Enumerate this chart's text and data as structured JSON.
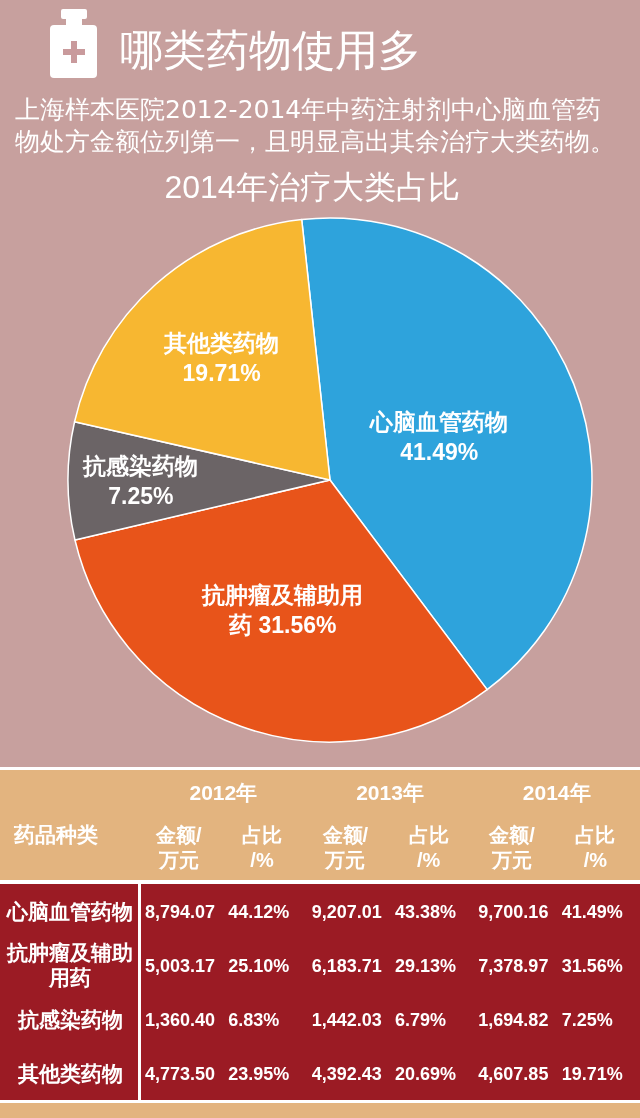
{
  "chart_data": [
    {
      "type": "pie",
      "title": "2014年治疗大类占比",
      "annotations": [
        "哪类药物使用多",
        "上海样本医院2012-2014年中药注射剂中心脑血管药物处方金额位列第一，且明显高出其余治疗大类药物。"
      ],
      "categories": [
        "心脑血管药物",
        "抗肿瘤及辅助用药",
        "抗感染药物",
        "其他类药物"
      ],
      "values": [
        41.49,
        31.56,
        7.25,
        19.71
      ],
      "value_labels": [
        "41.49%",
        "31.56%",
        "7.25%",
        "19.71%"
      ],
      "colors": [
        "#2ea3dc",
        "#e8541a",
        "#6b6466",
        "#f7b731"
      ]
    },
    {
      "type": "heatmap",
      "ylabel": "药品种类",
      "annotations": [
        "2012年",
        "2013年",
        "2014年"
      ],
      "categories": [
        "金额/万元",
        "占比/%",
        "金额/万元",
        "占比/%",
        "金额/万元",
        "占比/%"
      ],
      "y_categories": [
        "心脑血管药物",
        "抗肿瘤及辅助用药",
        "抗感染药物",
        "其他类药物"
      ],
      "cells": [
        [
          8794.07,
          44.12,
          9207.01,
          43.38,
          9700.16,
          41.49
        ],
        [
          5003.17,
          25.1,
          6183.71,
          29.13,
          7378.97,
          31.56
        ],
        [
          1360.4,
          6.83,
          1442.03,
          6.79,
          1694.82,
          7.25
        ],
        [
          4773.5,
          23.95,
          4392.43,
          20.69,
          4607.85,
          19.71
        ]
      ],
      "cell_labels": [
        [
          "8,794.07",
          "44.12%",
          "9,207.01",
          "43.38%",
          "9,700.16",
          "41.49%"
        ],
        [
          "5,003.17",
          "25.10%",
          "6,183.71",
          "29.13%",
          "7,378.97",
          "31.56%"
        ],
        [
          "1,360.40",
          "6.83%",
          "1,442.03",
          "6.79%",
          "1,694.82",
          "7.25%"
        ],
        [
          "4,773.50",
          "23.95%",
          "4,392.43",
          "20.69%",
          "4,607.85",
          "19.71%"
        ]
      ],
      "color": "#9b1b24"
    }
  ]
}
